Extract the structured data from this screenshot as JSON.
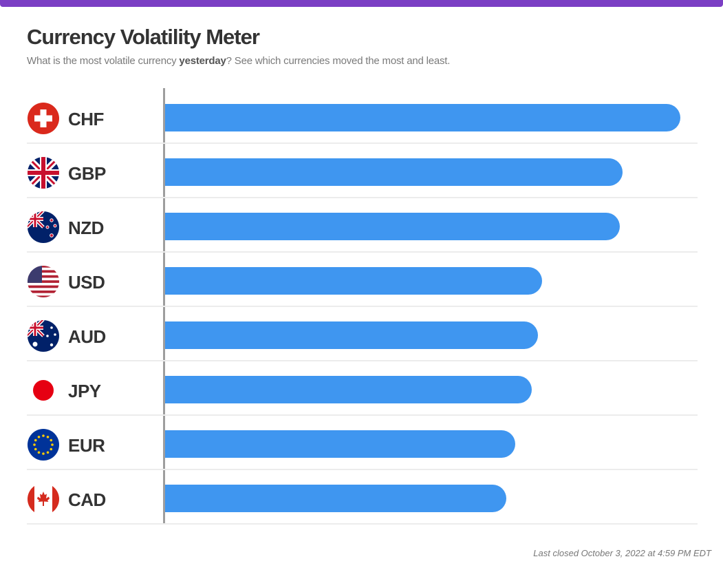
{
  "header": {
    "title": "Currency Volatility Meter",
    "subtitle_pre": "What is the most volatile currency ",
    "subtitle_bold": "yesterday",
    "subtitle_post": "? See which currencies moved the most and least."
  },
  "footer": {
    "last_closed": "Last closed October 3, 2022 at 4:59 PM EDT"
  },
  "colors": {
    "accent": "#7b3fc4",
    "bar": "#3f96f0",
    "axis": "#9e9e9e"
  },
  "chart_data": {
    "type": "bar",
    "orientation": "horizontal",
    "value_scale": "fraction of longest bar",
    "categories": [
      "CHF",
      "GBP",
      "NZD",
      "USD",
      "AUD",
      "JPY",
      "EUR",
      "CAD"
    ],
    "values": [
      1.0,
      0.888,
      0.883,
      0.731,
      0.723,
      0.712,
      0.679,
      0.662
    ],
    "flags": [
      "swiss-flag-icon",
      "uk-flag-icon",
      "new-zealand-flag-icon",
      "us-flag-icon",
      "australia-flag-icon",
      "japan-flag-icon",
      "eu-flag-icon",
      "canada-flag-icon"
    ],
    "title": "",
    "xlabel": "",
    "ylabel": "",
    "grid": false,
    "legend": "none"
  }
}
